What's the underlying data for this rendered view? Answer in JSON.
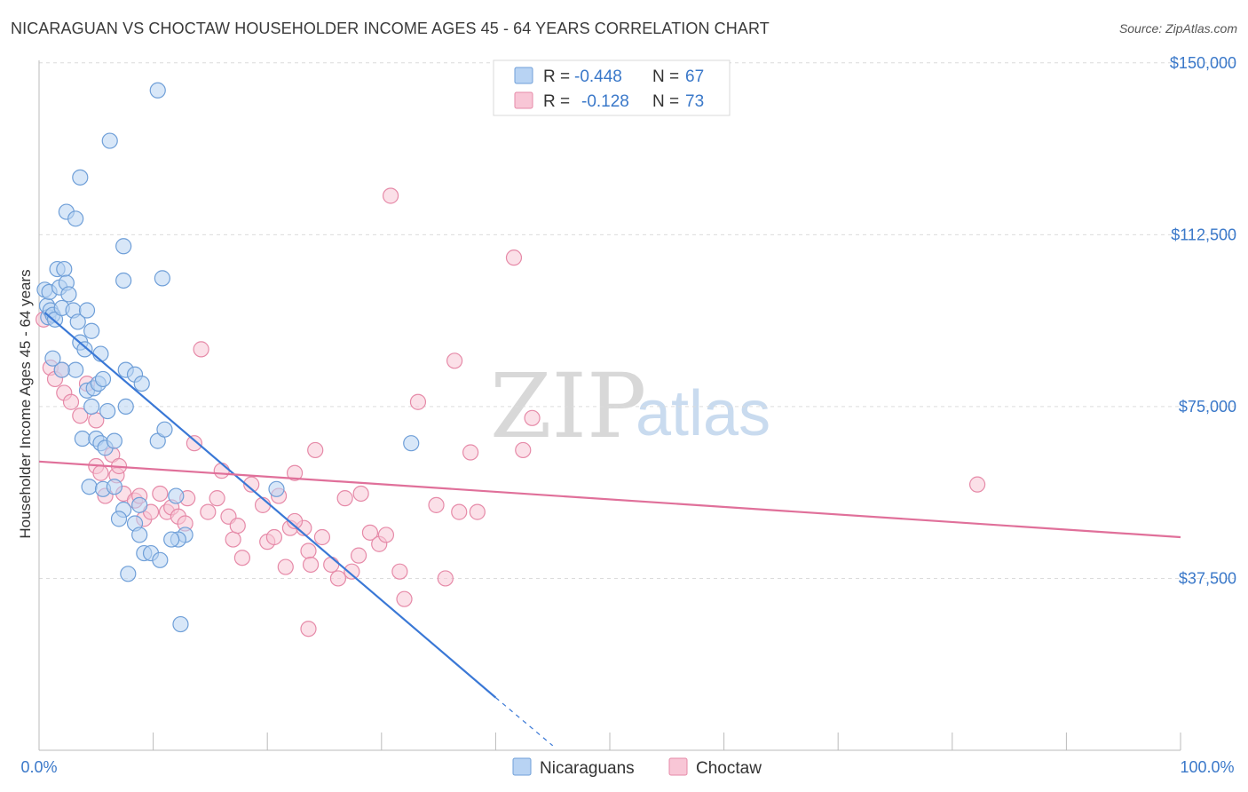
{
  "header": {
    "title": "NICARAGUAN VS CHOCTAW HOUSEHOLDER INCOME AGES 45 - 64 YEARS CORRELATION CHART",
    "source": "Source: ZipAtlas.com"
  },
  "watermark": {
    "zip": "ZIP",
    "atlas": "atlas"
  },
  "colors": {
    "blue_fill": "#b8d3f3",
    "blue_stroke": "#6f9fd8",
    "blue_line": "#3a78d6",
    "pink_fill": "#f8c6d6",
    "pink_stroke": "#e68aa8",
    "pink_line": "#e0709a",
    "tick_text": "#3a78c9",
    "grid": "#dcdcdc"
  },
  "legend": {
    "rows": [
      {
        "series": "Nicaraguans",
        "r_label": "R = ",
        "r_value": "-0.448",
        "n_label": "N = ",
        "n_value": "67"
      },
      {
        "series": "Choctaw",
        "r_label": "R = ",
        "r_value": "-0.128",
        "n_label": "N = ",
        "n_value": "73"
      }
    ]
  },
  "chart_data": {
    "type": "scatter",
    "title": "NICARAGUAN VS CHOCTAW HOUSEHOLDER INCOME AGES 45 - 64 YEARS CORRELATION CHART",
    "xlabel": "",
    "ylabel": "Householder Income Ages 45 - 64 years",
    "xlim": [
      0,
      100
    ],
    "ylim": [
      0,
      155000
    ],
    "x_tick_labels": [
      "0.0%",
      "100.0%"
    ],
    "y_ticks": [
      {
        "value": 37500,
        "label": "$37,500"
      },
      {
        "value": 75000,
        "label": "$75,000"
      },
      {
        "value": 112500,
        "label": "$112,500"
      },
      {
        "value": 150000,
        "label": "$150,000"
      }
    ],
    "grid": true,
    "legend_position": "bottom-center",
    "series": [
      {
        "name": "Nicaraguans",
        "color": "#6f9fd8",
        "r": -0.448,
        "n": 67,
        "trend": {
          "x_start": 0.5,
          "y_start": 95500,
          "x_end": 40,
          "y_end": 11500,
          "dash_to_x": 45,
          "dash_to_y": 1000
        },
        "points": [
          [
            0.5,
            100500
          ],
          [
            0.7,
            97000
          ],
          [
            0.8,
            94500
          ],
          [
            0.9,
            100000
          ],
          [
            1.0,
            96000
          ],
          [
            1.2,
            95000
          ],
          [
            1.4,
            94000
          ],
          [
            1.6,
            105000
          ],
          [
            1.8,
            101000
          ],
          [
            2.0,
            96500
          ],
          [
            2.2,
            105000
          ],
          [
            2.4,
            102000
          ],
          [
            2.6,
            99500
          ],
          [
            3.0,
            96000
          ],
          [
            3.2,
            83000
          ],
          [
            2.0,
            83000
          ],
          [
            1.2,
            85500
          ],
          [
            3.4,
            93500
          ],
          [
            3.6,
            89000
          ],
          [
            4.0,
            87500
          ],
          [
            4.2,
            96000
          ],
          [
            4.6,
            91500
          ],
          [
            4.2,
            78500
          ],
          [
            4.8,
            79000
          ],
          [
            5.2,
            80000
          ],
          [
            5.4,
            86500
          ],
          [
            5.6,
            81000
          ],
          [
            6.0,
            74000
          ],
          [
            4.6,
            75000
          ],
          [
            3.8,
            68000
          ],
          [
            5.0,
            68000
          ],
          [
            5.4,
            67000
          ],
          [
            5.8,
            66000
          ],
          [
            6.6,
            67500
          ],
          [
            7.6,
            83000
          ],
          [
            8.4,
            82000
          ],
          [
            9.0,
            80000
          ],
          [
            7.6,
            75000
          ],
          [
            10.4,
            67500
          ],
          [
            11.0,
            70000
          ],
          [
            4.4,
            57500
          ],
          [
            5.6,
            57000
          ],
          [
            6.6,
            57500
          ],
          [
            7.4,
            52500
          ],
          [
            8.8,
            53500
          ],
          [
            7.0,
            50500
          ],
          [
            8.4,
            49500
          ],
          [
            8.8,
            47000
          ],
          [
            9.2,
            43000
          ],
          [
            9.8,
            43000
          ],
          [
            10.6,
            41500
          ],
          [
            12.0,
            55500
          ],
          [
            12.8,
            47000
          ],
          [
            12.2,
            46000
          ],
          [
            11.6,
            46000
          ],
          [
            7.8,
            38500
          ],
          [
            12.4,
            27500
          ],
          [
            20.8,
            57000
          ],
          [
            32.6,
            67000
          ],
          [
            2.4,
            117500
          ],
          [
            3.2,
            116000
          ],
          [
            3.6,
            125000
          ],
          [
            6.2,
            133000
          ],
          [
            10.4,
            144000
          ],
          [
            7.4,
            110000
          ],
          [
            7.4,
            102500
          ],
          [
            10.8,
            103000
          ]
        ]
      },
      {
        "name": "Choctaw",
        "color": "#e68aa8",
        "r": -0.128,
        "n": 73,
        "trend": {
          "x_start": 0,
          "y_start": 63000,
          "x_end": 100,
          "y_end": 46500
        },
        "points": [
          [
            0.4,
            94000
          ],
          [
            1.0,
            83500
          ],
          [
            1.4,
            81000
          ],
          [
            2.0,
            83000
          ],
          [
            2.2,
            78000
          ],
          [
            2.8,
            76000
          ],
          [
            3.6,
            73000
          ],
          [
            4.2,
            80000
          ],
          [
            5.0,
            72000
          ],
          [
            5.0,
            62000
          ],
          [
            5.4,
            60500
          ],
          [
            5.8,
            55500
          ],
          [
            6.4,
            64500
          ],
          [
            6.8,
            60000
          ],
          [
            7.0,
            62000
          ],
          [
            7.4,
            56000
          ],
          [
            8.4,
            54500
          ],
          [
            8.8,
            55500
          ],
          [
            9.2,
            50500
          ],
          [
            9.8,
            52000
          ],
          [
            10.6,
            56000
          ],
          [
            11.2,
            52000
          ],
          [
            11.6,
            53000
          ],
          [
            12.2,
            51000
          ],
          [
            12.8,
            49500
          ],
          [
            13.0,
            55000
          ],
          [
            13.6,
            67000
          ],
          [
            14.2,
            87500
          ],
          [
            14.8,
            52000
          ],
          [
            15.6,
            55000
          ],
          [
            16.0,
            61000
          ],
          [
            16.6,
            51000
          ],
          [
            17.0,
            46000
          ],
          [
            17.4,
            49000
          ],
          [
            17.8,
            42000
          ],
          [
            18.6,
            58000
          ],
          [
            19.6,
            53500
          ],
          [
            20.0,
            45500
          ],
          [
            20.6,
            46500
          ],
          [
            21.0,
            55500
          ],
          [
            21.6,
            40000
          ],
          [
            22.0,
            48500
          ],
          [
            22.4,
            60500
          ],
          [
            23.2,
            48500
          ],
          [
            23.6,
            43500
          ],
          [
            23.8,
            40500
          ],
          [
            24.2,
            65500
          ],
          [
            24.8,
            46500
          ],
          [
            25.6,
            40500
          ],
          [
            26.2,
            37500
          ],
          [
            26.8,
            55000
          ],
          [
            27.4,
            39000
          ],
          [
            28.0,
            42500
          ],
          [
            28.2,
            56000
          ],
          [
            29.0,
            47500
          ],
          [
            29.8,
            45000
          ],
          [
            30.4,
            47000
          ],
          [
            31.6,
            39000
          ],
          [
            32.0,
            33000
          ],
          [
            33.2,
            76000
          ],
          [
            34.8,
            53500
          ],
          [
            35.6,
            37500
          ],
          [
            36.4,
            85000
          ],
          [
            36.8,
            52000
          ],
          [
            37.8,
            65000
          ],
          [
            38.4,
            52000
          ],
          [
            41.6,
            107500
          ],
          [
            42.4,
            65500
          ],
          [
            43.2,
            72500
          ],
          [
            30.8,
            121000
          ],
          [
            23.6,
            26500
          ],
          [
            22.4,
            50000
          ],
          [
            82.2,
            58000
          ]
        ]
      }
    ]
  }
}
